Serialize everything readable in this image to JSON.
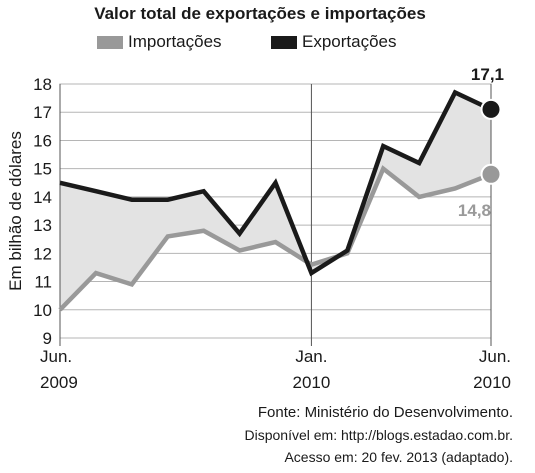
{
  "chart_data": {
    "type": "line",
    "title": "Valor total de exportações e importações",
    "ylabel": "Em bilhão de dólares",
    "xlabel": "",
    "ylim": [
      9,
      18
    ],
    "yticks": [
      9,
      10,
      11,
      12,
      13,
      14,
      15,
      16,
      17,
      18
    ],
    "xticks": [
      {
        "line1": "Jun.",
        "line2": "2009",
        "index": 0
      },
      {
        "line1": "Jan.",
        "line2": "2010",
        "index": 7
      },
      {
        "line1": "Jun.",
        "line2": "2010",
        "index": 12
      }
    ],
    "grid": true,
    "legend_position": "top",
    "area_between_series": true,
    "series": [
      {
        "name": "Importações",
        "color": "#999999",
        "values": [
          10.0,
          11.3,
          10.9,
          12.6,
          12.8,
          12.1,
          12.4,
          11.6,
          12.0,
          15.0,
          14.0,
          14.3,
          14.8
        ]
      },
      {
        "name": "Exportações",
        "color": "#1a1a1a",
        "values": [
          14.5,
          14.2,
          13.9,
          13.9,
          14.2,
          12.7,
          14.5,
          11.3,
          12.1,
          15.8,
          15.2,
          17.7,
          17.1
        ]
      }
    ],
    "endpoint_labels": {
      "exportacoes": "17,1",
      "importacoes": "14,8"
    },
    "area_color": "#e3e3e3"
  },
  "source": {
    "line1": "Fonte: Ministério do Desenvolvimento.",
    "line2": "Disponível em: http://blogs.estadao.com.br.",
    "line3": "Acesso em: 20 fev. 2013 (adaptado)."
  }
}
